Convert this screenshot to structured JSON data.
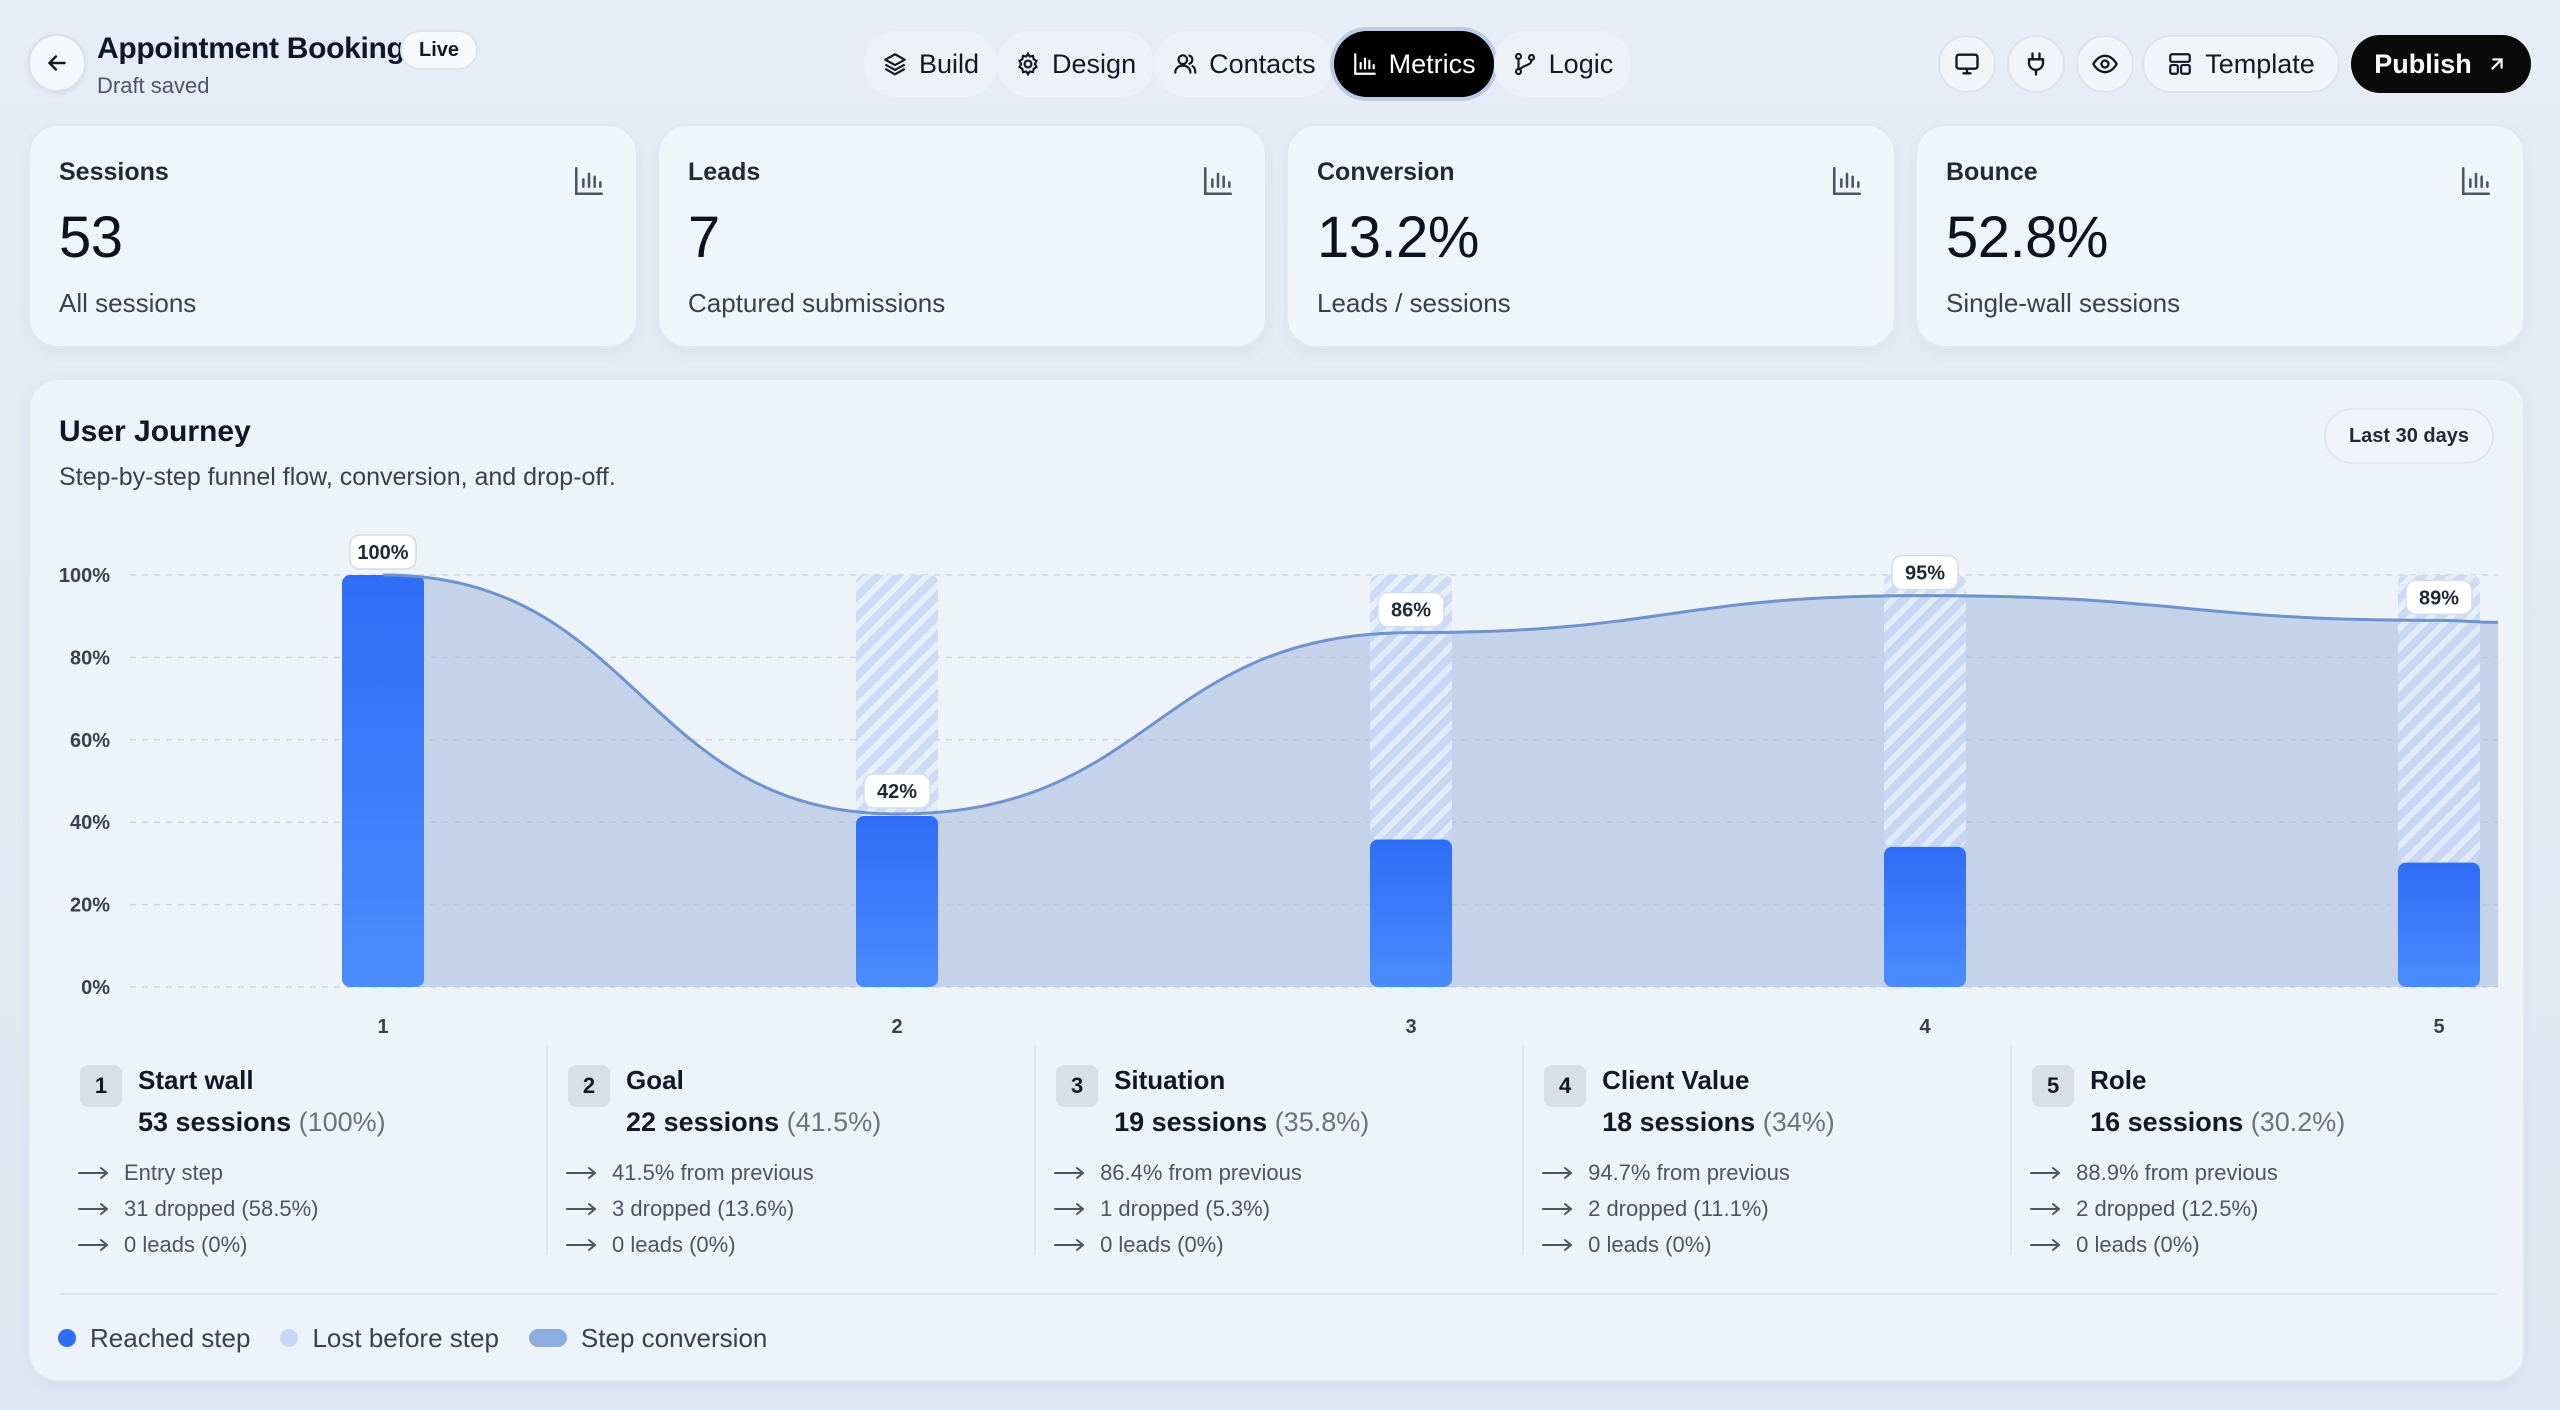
{
  "header": {
    "title": "Appointment Booking",
    "badge": "Live",
    "status": "Draft saved",
    "tabs": [
      {
        "label": "Build",
        "icon": "layers-icon",
        "active": false
      },
      {
        "label": "Design",
        "icon": "gear-icon",
        "active": false
      },
      {
        "label": "Contacts",
        "icon": "users-icon",
        "active": false
      },
      {
        "label": "Metrics",
        "icon": "bar-chart-icon",
        "active": true
      },
      {
        "label": "Logic",
        "icon": "branch-icon",
        "active": false
      }
    ],
    "actions": {
      "desktop_icon": "monitor-icon",
      "integrations_icon": "plug-icon",
      "preview_icon": "eye-icon",
      "template_label": "Template",
      "publish_label": "Publish"
    }
  },
  "stats": [
    {
      "label": "Sessions",
      "value": "53",
      "sub": "All sessions"
    },
    {
      "label": "Leads",
      "value": "7",
      "sub": "Captured submissions"
    },
    {
      "label": "Conversion",
      "value": "13.2%",
      "sub": "Leads / sessions"
    },
    {
      "label": "Bounce",
      "value": "52.8%",
      "sub": "Single-wall sessions"
    }
  ],
  "journey": {
    "title": "User Journey",
    "subtitle": "Step-by-step funnel flow, conversion, and drop-off.",
    "range_label": "Last 30 days",
    "steps": [
      {
        "num": "1",
        "name": "Start wall",
        "sessions": "53 sessions",
        "pct": "(100%)",
        "lines": [
          "Entry step",
          "31 dropped (58.5%)",
          "0 leads (0%)"
        ]
      },
      {
        "num": "2",
        "name": "Goal",
        "sessions": "22 sessions",
        "pct": "(41.5%)",
        "lines": [
          "41.5% from previous",
          "3 dropped (13.6%)",
          "0 leads (0%)"
        ]
      },
      {
        "num": "3",
        "name": "Situation",
        "sessions": "19 sessions",
        "pct": "(35.8%)",
        "lines": [
          "86.4% from previous",
          "1 dropped (5.3%)",
          "0 leads (0%)"
        ]
      },
      {
        "num": "4",
        "name": "Client Value",
        "sessions": "18 sessions",
        "pct": "(34%)",
        "lines": [
          "94.7% from previous",
          "2 dropped (11.1%)",
          "0 leads (0%)"
        ]
      },
      {
        "num": "5",
        "name": "Role",
        "sessions": "16 sessions",
        "pct": "(30.2%)",
        "lines": [
          "88.9% from previous",
          "2 dropped (12.5%)",
          "0 leads (0%)"
        ]
      }
    ],
    "legend": [
      {
        "label": "Reached step",
        "color": "#2f6df6"
      },
      {
        "label": "Lost before step",
        "color": "#c7d7f5"
      },
      {
        "label": "Step conversion",
        "color": "#8eaee0"
      }
    ]
  },
  "chart_data": {
    "type": "bar",
    "categories": [
      "1",
      "2",
      "3",
      "4",
      "5"
    ],
    "series": [
      {
        "name": "Reached step",
        "values": [
          100,
          41.5,
          35.8,
          34,
          30.2
        ]
      },
      {
        "name": "Lost before step",
        "values": [
          0,
          58.5,
          64.2,
          66,
          69.8
        ]
      },
      {
        "name": "Step conversion",
        "values": [
          100,
          42,
          86,
          95,
          89
        ]
      }
    ],
    "data_labels": [
      "100%",
      "42%",
      "86%",
      "95%",
      "89%"
    ],
    "y_ticks": [
      "0%",
      "20%",
      "40%",
      "60%",
      "80%",
      "100%"
    ],
    "ylim": [
      0,
      100
    ],
    "grid": true,
    "colors": {
      "reached": "#2f6df6",
      "lost": "#c7d7f5",
      "conversion_line": "#6f93cf",
      "conversion_fill": "#a9bedf"
    }
  }
}
